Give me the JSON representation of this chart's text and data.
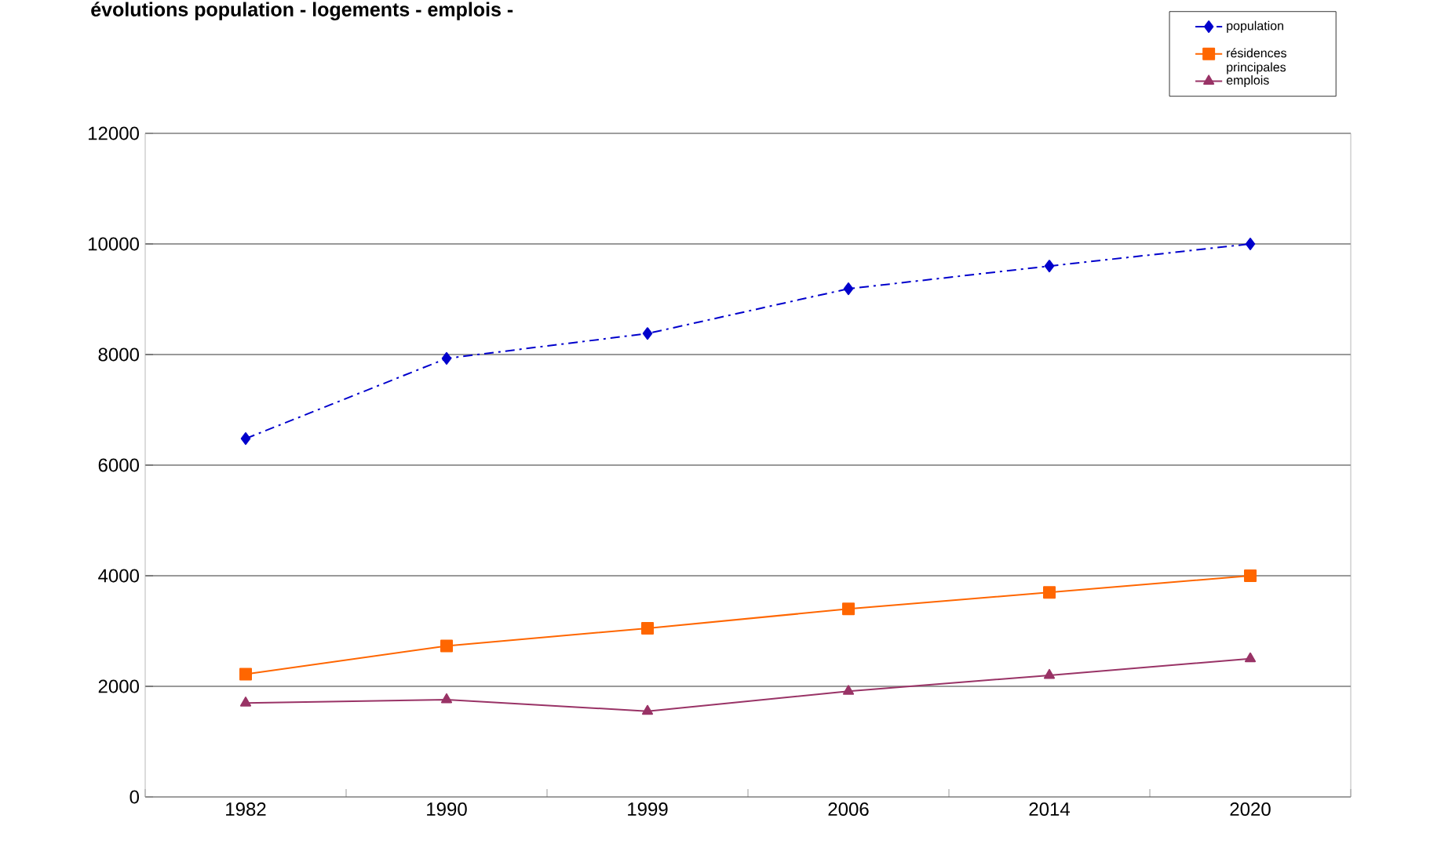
{
  "chart_data": {
    "type": "line",
    "title": "évolutions population - logements - emplois  -",
    "categories": [
      "1982",
      "1990",
      "1999",
      "2006",
      "2014",
      "2020"
    ],
    "series": [
      {
        "name": "population",
        "color": "#0000cc",
        "marker": "diamond",
        "line_style": "dashdot",
        "values": [
          6480,
          7930,
          8380,
          9190,
          9600,
          10000
        ]
      },
      {
        "name": "résidences principales",
        "color": "#ff6600",
        "marker": "square",
        "line_style": "solid",
        "values": [
          2220,
          2730,
          3050,
          3400,
          3700,
          4000
        ]
      },
      {
        "name": "emplois",
        "color": "#993366",
        "marker": "triangle",
        "line_style": "solid",
        "values": [
          1700,
          1760,
          1550,
          1910,
          2200,
          2500
        ]
      }
    ],
    "ylim": [
      0,
      12000
    ],
    "yticks": [
      0,
      2000,
      4000,
      6000,
      8000,
      10000,
      12000
    ],
    "grid": "y",
    "legend": "top right"
  }
}
